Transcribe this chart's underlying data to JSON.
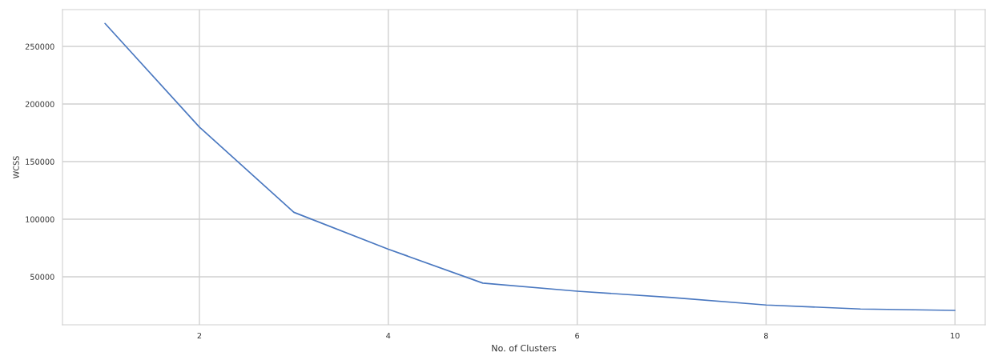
{
  "chart_data": {
    "type": "line",
    "xlabel": "No. of Clusters",
    "ylabel": "WCSS",
    "x": [
      1,
      2,
      3,
      4,
      5,
      6,
      7,
      8,
      9,
      10
    ],
    "series": [
      {
        "color": "#4a78c0",
        "values": [
          270000,
          180000,
          106000,
          74000,
          44500,
          37500,
          32000,
          25500,
          22000,
          20800
        ]
      }
    ],
    "xlim": [
      0.55,
      10.32
    ],
    "ylim": [
      8300,
      282000
    ],
    "xticks": [
      2,
      4,
      6,
      8,
      10
    ],
    "yticks": [
      50000,
      100000,
      150000,
      200000,
      250000
    ],
    "grid": true,
    "marker": "none",
    "line_style": "solid"
  }
}
